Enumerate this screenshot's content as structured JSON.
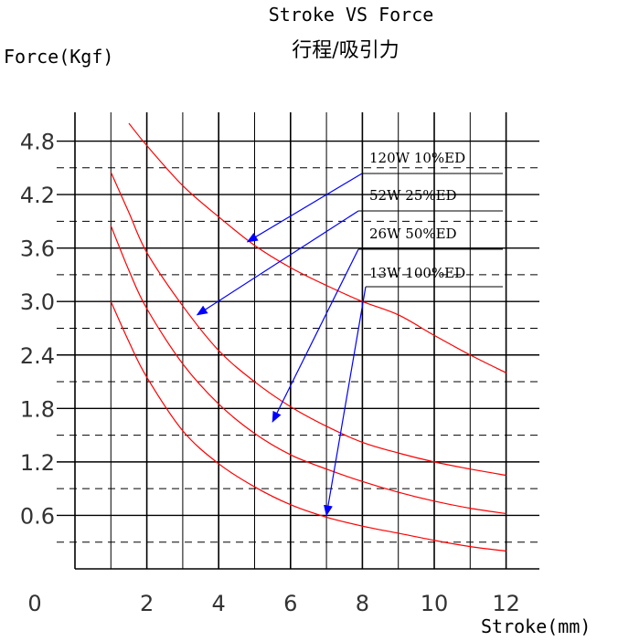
{
  "chart_data": {
    "type": "line",
    "title": "Stroke VS  Force",
    "subtitle": "行程/吸引力",
    "xlabel": "Stroke(mm)",
    "ylabel": "Force(Kgf)",
    "xlim": [
      0,
      12
    ],
    "ylim": [
      0,
      5.1
    ],
    "x_ticks": [
      "0",
      "2",
      "4",
      "6",
      "8",
      "10",
      "12"
    ],
    "y_ticks": [
      "0.6",
      "1.2",
      "1.8",
      "2.4",
      "3.0",
      "3.6",
      "4.2",
      "4.8"
    ],
    "grid": true,
    "series": [
      {
        "name": "120W 10%ED",
        "x": [
          1.5,
          2,
          3,
          4,
          5,
          6,
          7,
          8,
          9,
          10,
          11,
          12
        ],
        "y": [
          5.0,
          4.75,
          4.3,
          3.95,
          3.63,
          3.38,
          3.18,
          3.0,
          2.85,
          2.62,
          2.4,
          2.2
        ]
      },
      {
        "name": "52W 25%ED",
        "x": [
          1,
          1.5,
          2,
          3,
          4,
          5,
          6,
          7,
          8,
          9,
          10,
          11,
          12
        ],
        "y": [
          4.45,
          4.0,
          3.55,
          2.95,
          2.45,
          2.1,
          1.82,
          1.6,
          1.42,
          1.3,
          1.2,
          1.12,
          1.05
        ]
      },
      {
        "name": "26W  50%ED",
        "x": [
          1,
          1.5,
          2,
          3,
          4,
          5,
          6,
          7,
          8,
          9,
          10,
          11,
          12
        ],
        "y": [
          3.85,
          3.35,
          2.92,
          2.3,
          1.85,
          1.52,
          1.28,
          1.12,
          0.98,
          0.86,
          0.76,
          0.68,
          0.62
        ]
      },
      {
        "name": "13W 100%ED",
        "x": [
          1,
          1.5,
          2,
          3,
          4,
          5,
          6,
          7,
          8,
          9,
          10,
          11,
          12
        ],
        "y": [
          3.0,
          2.55,
          2.15,
          1.55,
          1.18,
          0.92,
          0.72,
          0.58,
          0.48,
          0.4,
          0.32,
          0.25,
          0.2
        ]
      }
    ],
    "annotations": [
      {
        "label": "120W 10%ED",
        "arrow_target": {
          "x": 4.8,
          "y": 3.67
        }
      },
      {
        "label": "52W 25%ED",
        "arrow_target": {
          "x": 3.4,
          "y": 2.85
        }
      },
      {
        "label": "26W  50%ED",
        "arrow_target": {
          "x": 5.5,
          "y": 1.65
        }
      },
      {
        "label": "13W 100%ED",
        "arrow_target": {
          "x": 7.0,
          "y": 0.6
        }
      }
    ],
    "colors": {
      "curve": "#ff0000",
      "arrow": "#0000ff",
      "grid": "#000000"
    }
  }
}
